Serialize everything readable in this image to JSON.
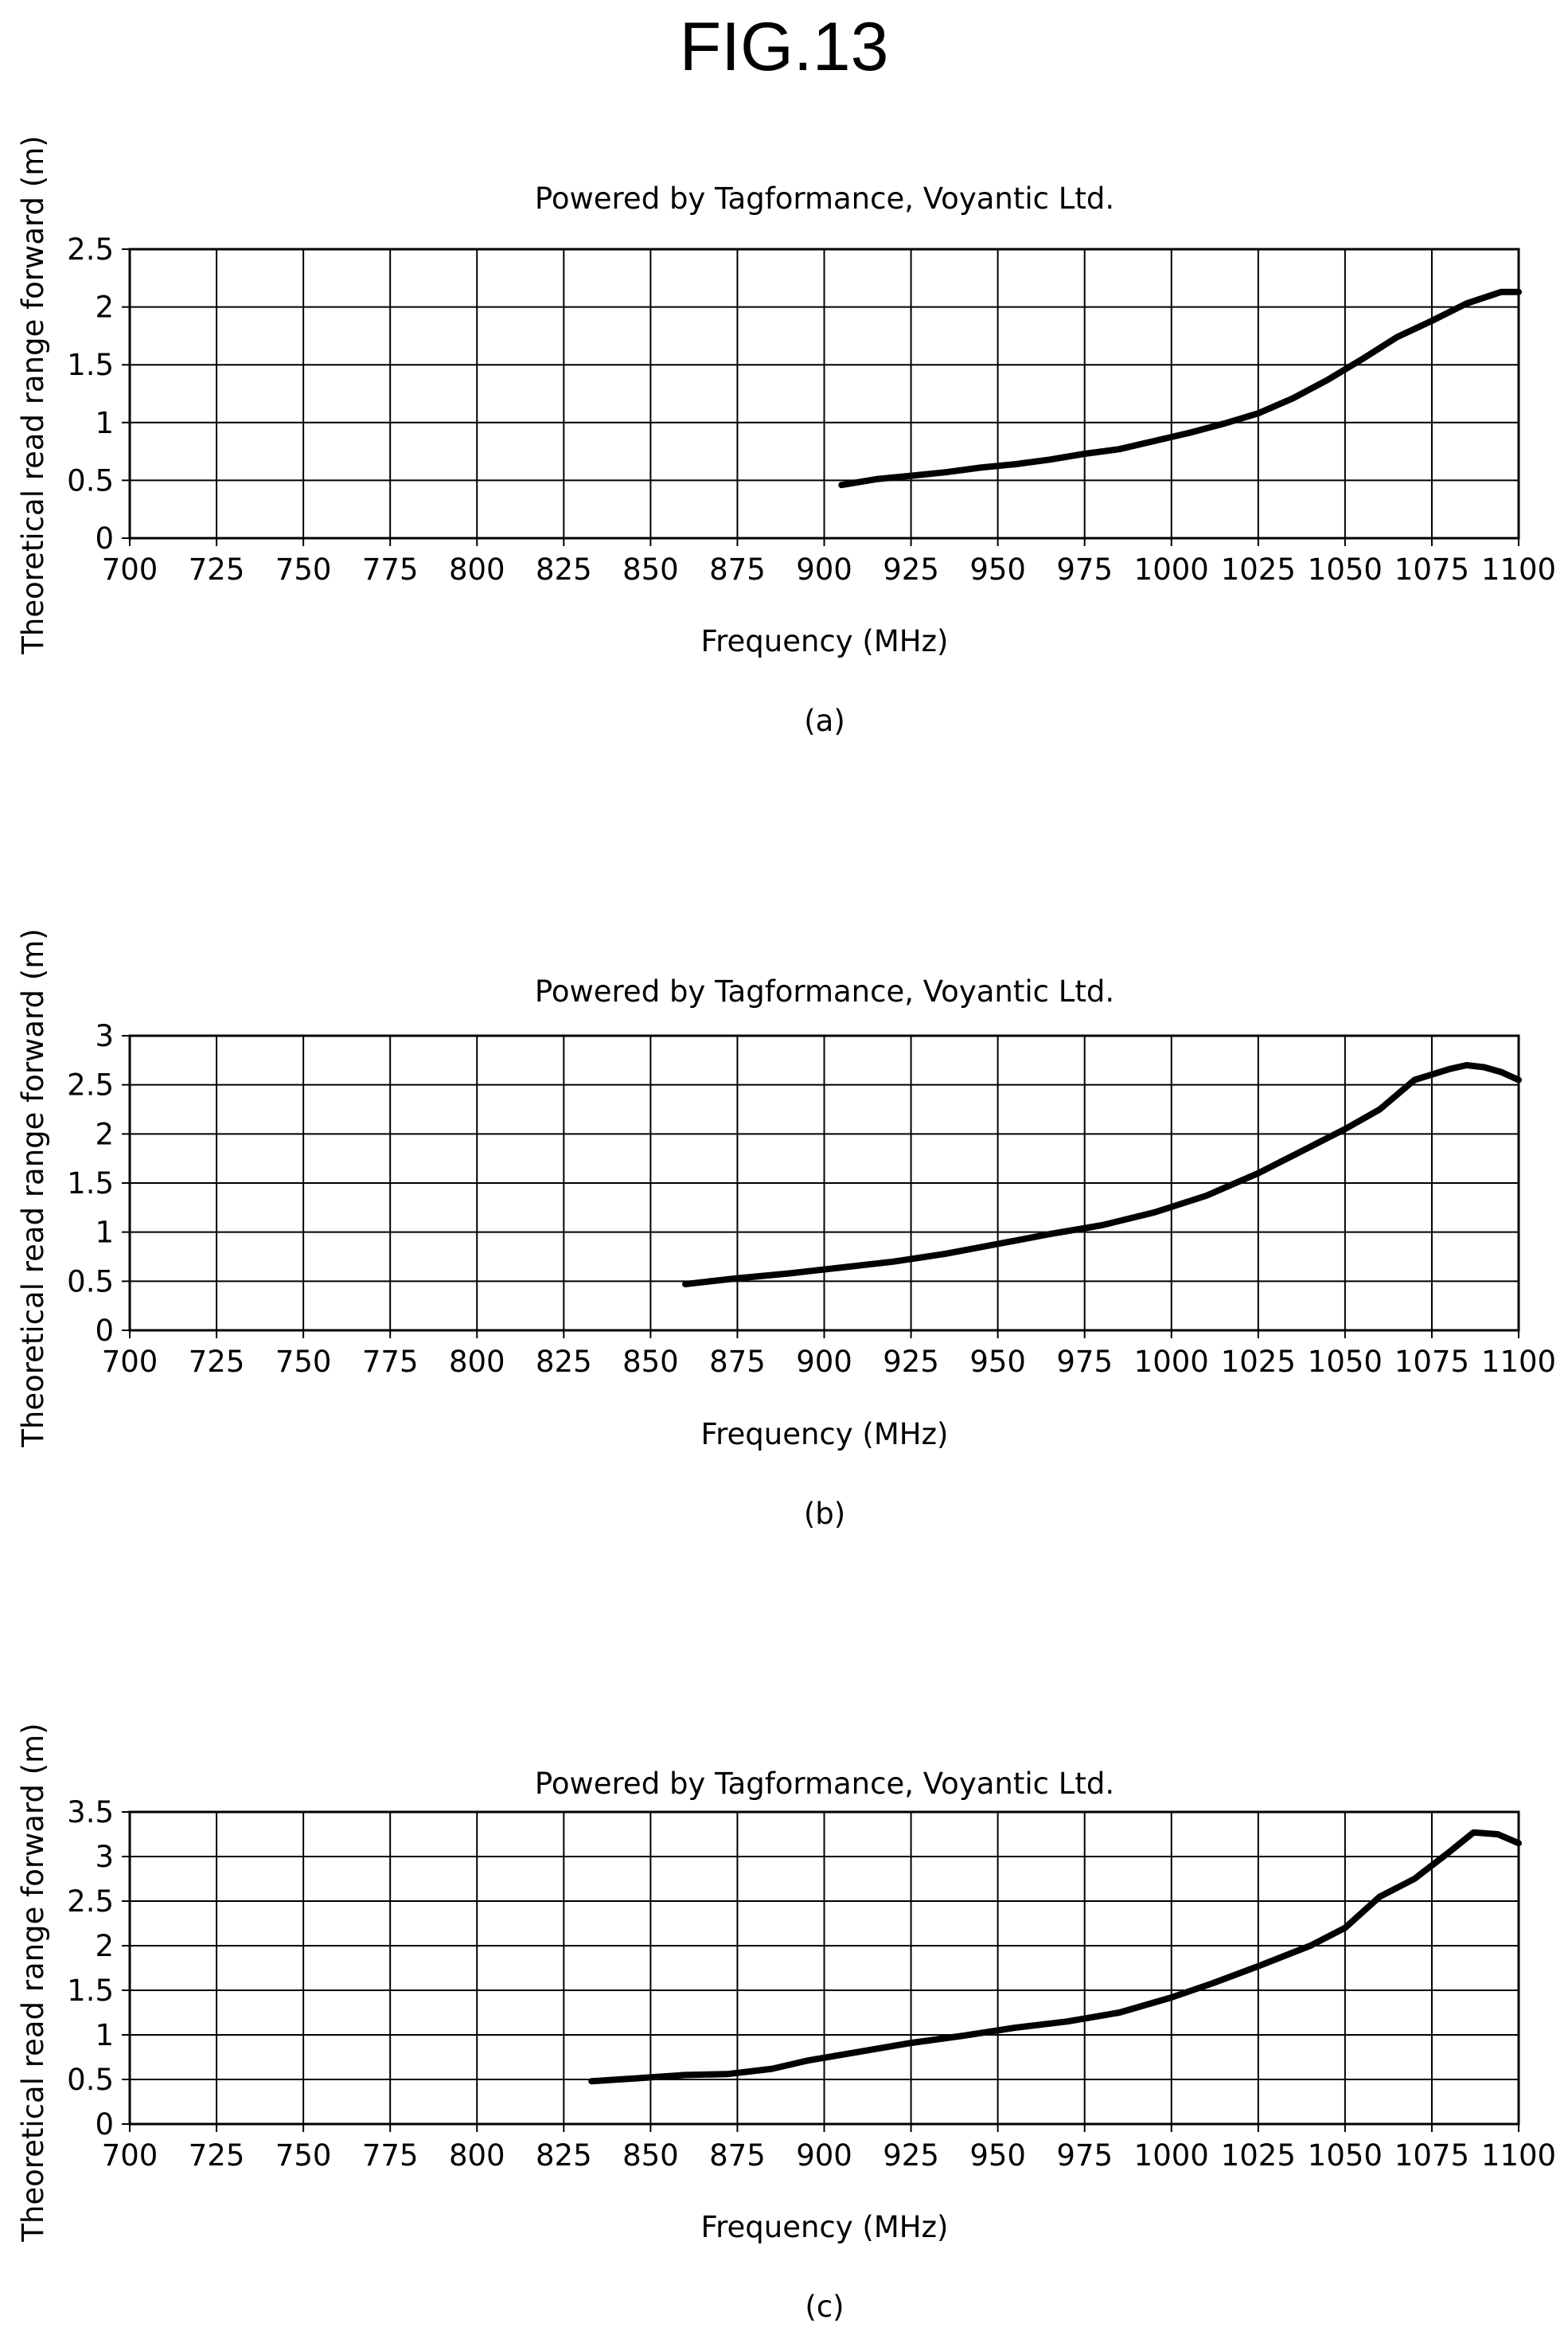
{
  "figure_title": "FIG.13",
  "chart_data": [
    {
      "type": "line",
      "title": "Powered by Tagformance, Voyantic Ltd.",
      "xlabel": "Frequency (MHz)",
      "ylabel": "Theoretical read range forward (m)",
      "caption": "(a)",
      "xlim": [
        700,
        1100
      ],
      "ylim": [
        0,
        2.5
      ],
      "x_ticks": [
        "700",
        "725",
        "750",
        "775",
        "800",
        "825",
        "850",
        "875",
        "900",
        "925",
        "950",
        "975",
        "1000",
        "1025",
        "1050",
        "1075",
        "1100"
      ],
      "y_ticks": [
        "0",
        "0.5",
        "1",
        "1.5",
        "2",
        "2.5"
      ],
      "grid": true,
      "series": [
        {
          "x": [
            905,
            915,
            925,
            935,
            945,
            955,
            965,
            975,
            985,
            995,
            1005,
            1015,
            1025,
            1035,
            1045,
            1055,
            1065,
            1075,
            1085,
            1095,
            1100
          ],
          "y": [
            0.46,
            0.51,
            0.54,
            0.57,
            0.61,
            0.64,
            0.68,
            0.73,
            0.77,
            0.84,
            0.91,
            0.99,
            1.08,
            1.21,
            1.37,
            1.55,
            1.74,
            1.88,
            2.03,
            2.13,
            2.13
          ]
        }
      ]
    },
    {
      "type": "line",
      "title": "Powered by Tagformance, Voyantic Ltd.",
      "xlabel": "Frequency (MHz)",
      "ylabel": "Theoretical read range forward (m)",
      "caption": "(b)",
      "xlim": [
        700,
        1100
      ],
      "ylim": [
        0,
        3
      ],
      "x_ticks": [
        "700",
        "725",
        "750",
        "775",
        "800",
        "825",
        "850",
        "875",
        "900",
        "925",
        "950",
        "975",
        "1000",
        "1025",
        "1050",
        "1075",
        "1100"
      ],
      "y_ticks": [
        "0",
        "0.5",
        "1",
        "1.5",
        "2",
        "2.5",
        "3"
      ],
      "grid": true,
      "series": [
        {
          "x": [
            860,
            875,
            890,
            905,
            920,
            935,
            950,
            965,
            980,
            995,
            1010,
            1025,
            1040,
            1050,
            1060,
            1070,
            1080,
            1085,
            1090,
            1095,
            1100
          ],
          "y": [
            0.47,
            0.53,
            0.58,
            0.64,
            0.7,
            0.78,
            0.88,
            0.98,
            1.07,
            1.2,
            1.37,
            1.6,
            1.87,
            2.05,
            2.25,
            2.55,
            2.66,
            2.7,
            2.68,
            2.63,
            2.55
          ]
        }
      ]
    },
    {
      "type": "line",
      "title": "Powered by Tagformance, Voyantic Ltd.",
      "xlabel": "Frequency (MHz)",
      "ylabel": "Theoretical read range forward (m)",
      "caption": "(c)",
      "xlim": [
        700,
        1100
      ],
      "ylim": [
        0,
        3.5
      ],
      "x_ticks": [
        "700",
        "725",
        "750",
        "775",
        "800",
        "825",
        "850",
        "875",
        "900",
        "925",
        "950",
        "975",
        "1000",
        "1025",
        "1050",
        "1075",
        "1100"
      ],
      "y_ticks": [
        "0",
        "0.5",
        "1",
        "1.5",
        "2",
        "2.5",
        "3",
        "3.5"
      ],
      "grid": true,
      "series": [
        {
          "x": [
            833,
            845,
            860,
            872,
            885,
            895,
            910,
            925,
            940,
            955,
            970,
            985,
            1000,
            1012,
            1025,
            1040,
            1050,
            1060,
            1070,
            1080,
            1087,
            1094,
            1100
          ],
          "y": [
            0.48,
            0.51,
            0.55,
            0.56,
            0.62,
            0.71,
            0.81,
            0.91,
            0.99,
            1.08,
            1.15,
            1.25,
            1.42,
            1.58,
            1.77,
            2.0,
            2.2,
            2.55,
            2.75,
            3.05,
            3.27,
            3.25,
            3.15
          ]
        }
      ]
    }
  ]
}
